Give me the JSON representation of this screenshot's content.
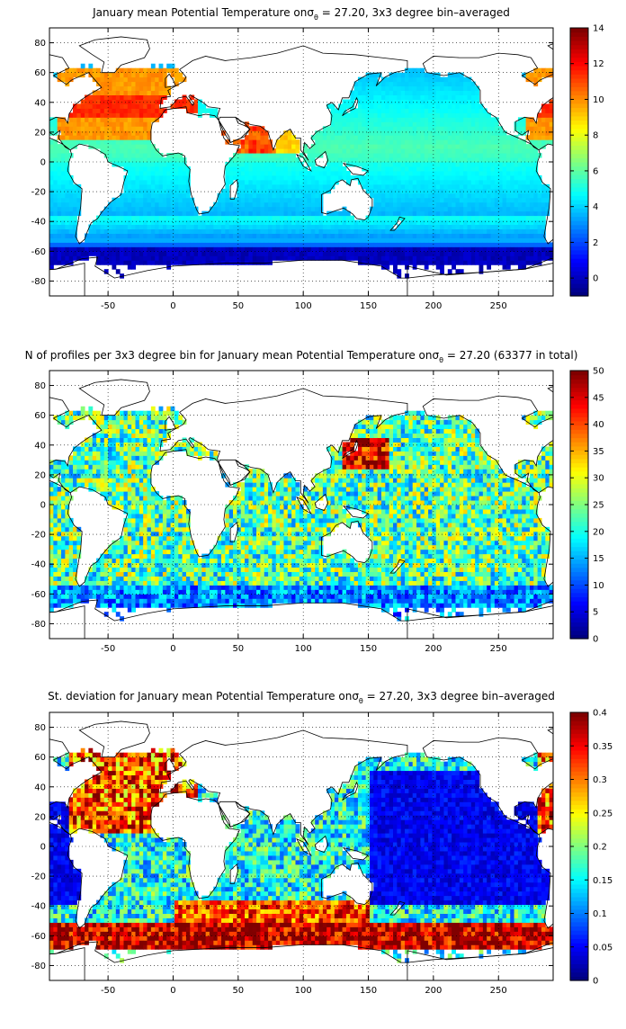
{
  "chart_data": [
    {
      "type": "heatmap",
      "title": "January mean Potential Temperature on σθ = 27.20, 3x3 degree bin–averaged",
      "title_parts": {
        "pre": "January mean Potential Temperature on",
        "sym": "σ",
        "sub": "θ",
        "post": " = 27.20, 3x3 degree bin–averaged"
      },
      "xlabel": "",
      "ylabel": "",
      "xlim": [
        -95,
        292
      ],
      "ylim": [
        -90,
        90
      ],
      "xticks": [
        -50,
        0,
        50,
        100,
        150,
        200,
        250
      ],
      "yticks": [
        -80,
        -60,
        -40,
        -20,
        0,
        20,
        40,
        60,
        80
      ],
      "grid": true,
      "colorbar": {
        "range": [
          -1,
          14
        ],
        "ticks": [
          0,
          2,
          4,
          6,
          8,
          10,
          12,
          14
        ],
        "colormap": "jet"
      },
      "field": "temperature"
    },
    {
      "type": "heatmap",
      "title": "N of profiles per 3x3 degree bin for January mean Potential Temperature on σθ = 27.20 (63377 in total)",
      "title_parts": {
        "pre": "N of profiles per 3x3 degree bin for January mean Potential Temperature on",
        "sym": "σ",
        "sub": "θ",
        "post": " = 27.20 (63377 in total)"
      },
      "xlabel": "",
      "ylabel": "",
      "xlim": [
        -95,
        292
      ],
      "ylim": [
        -90,
        90
      ],
      "xticks": [
        -50,
        0,
        50,
        100,
        150,
        200,
        250
      ],
      "yticks": [
        -80,
        -60,
        -40,
        -20,
        0,
        20,
        40,
        60,
        80
      ],
      "grid": true,
      "colorbar": {
        "range": [
          0,
          50
        ],
        "ticks": [
          0,
          5,
          10,
          15,
          20,
          25,
          30,
          35,
          40,
          45,
          50
        ],
        "colormap": "jet"
      },
      "field": "count"
    },
    {
      "type": "heatmap",
      "title": "St. deviation for January mean Potential Temperature on σθ = 27.20, 3x3 degree bin–averaged",
      "title_parts": {
        "pre": "St. deviation for January mean Potential Temperature on",
        "sym": "σ",
        "sub": "θ",
        "post": " = 27.20, 3x3 degree bin–averaged"
      },
      "xlabel": "",
      "ylabel": "",
      "xlim": [
        -95,
        292
      ],
      "ylim": [
        -90,
        90
      ],
      "xticks": [
        -50,
        0,
        50,
        100,
        150,
        200,
        250
      ],
      "yticks": [
        -80,
        -60,
        -40,
        -20,
        0,
        20,
        40,
        60,
        80
      ],
      "grid": true,
      "colorbar": {
        "range": [
          0,
          0.4
        ],
        "ticks": [
          0,
          0.05,
          0.1,
          0.15,
          0.2,
          0.25,
          0.3,
          0.35,
          0.4
        ],
        "colormap": "jet"
      },
      "field": "stdev"
    }
  ]
}
